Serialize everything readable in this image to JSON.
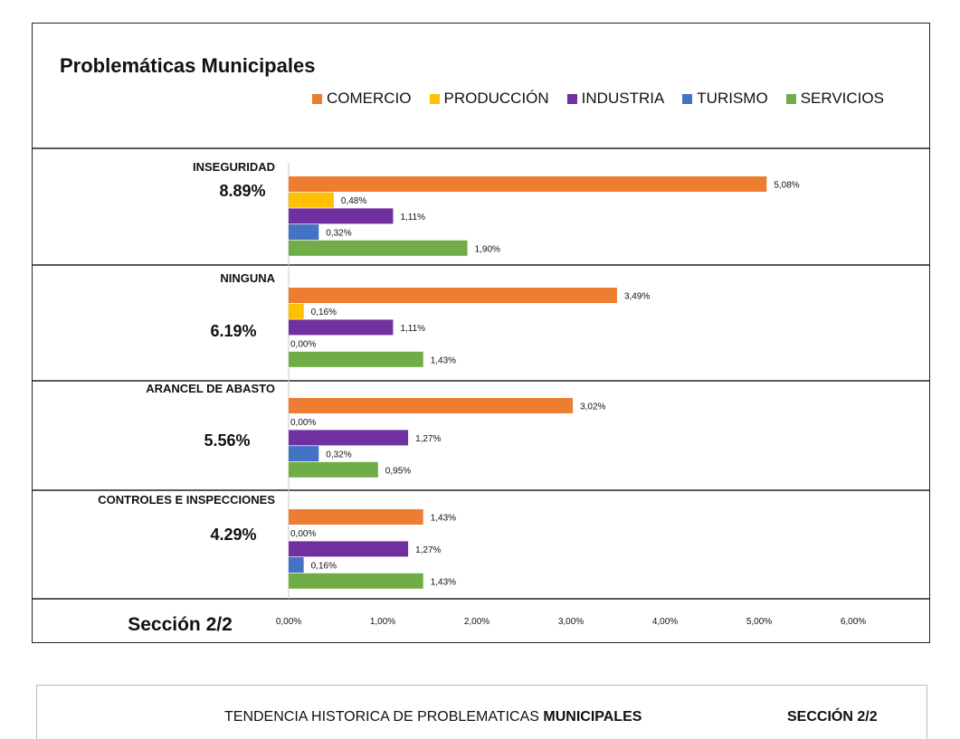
{
  "chart_data": {
    "type": "bar",
    "orientation": "horizontal",
    "title": "Problemáticas Municipales",
    "legend_position": "top-right",
    "series": [
      {
        "name": "COMERCIO",
        "color": "#ED7D31"
      },
      {
        "name": "PRODUCCIÓN",
        "color": "#FFC000"
      },
      {
        "name": "INDUSTRIA",
        "color": "#7030A0"
      },
      {
        "name": "TURISMO",
        "color": "#4472C4"
      },
      {
        "name": "SERVICIOS",
        "color": "#70AD47"
      }
    ],
    "categories": [
      {
        "label": "INSEGURIDAD",
        "total": "8.89%",
        "values": [
          5.08,
          0.48,
          1.11,
          0.32,
          1.9
        ],
        "value_labels": [
          "5,08%",
          "0,48%",
          "1,11%",
          "0,32%",
          "1,90%"
        ]
      },
      {
        "label": "NINGUNA",
        "total": "6.19%",
        "values": [
          3.49,
          0.16,
          1.11,
          0.0,
          1.43
        ],
        "value_labels": [
          "3,49%",
          "0,16%",
          "1,11%",
          "0,00%",
          "1,43%"
        ]
      },
      {
        "label": "ARANCEL DE ABASTO",
        "total": "5.56%",
        "values": [
          3.02,
          0.0,
          1.27,
          0.32,
          0.95
        ],
        "value_labels": [
          "3,02%",
          "0,00%",
          "1,27%",
          "0,32%",
          "0,95%"
        ]
      },
      {
        "label": "CONTROLES E INSPECCIONES",
        "total": "4.29%",
        "values": [
          1.43,
          0.0,
          1.27,
          0.16,
          1.43
        ],
        "value_labels": [
          "1,43%",
          "0,00%",
          "1,27%",
          "0,16%",
          "1,43%"
        ]
      }
    ],
    "xlim": [
      0,
      6
    ],
    "x_ticks": [
      0,
      1,
      2,
      3,
      4,
      5,
      6
    ],
    "x_tick_labels": [
      "0,00%",
      "1,00%",
      "2,00%",
      "3,00%",
      "4,00%",
      "5,00%",
      "6,00%"
    ],
    "section_label": "Sección 2/2",
    "grid": false
  },
  "footer": {
    "title_prefix": "TENDENCIA HISTORICA DE PROBLEMATICAS ",
    "title_bold": "MUNICIPALES",
    "section": "SECCIÓN 2/2"
  }
}
